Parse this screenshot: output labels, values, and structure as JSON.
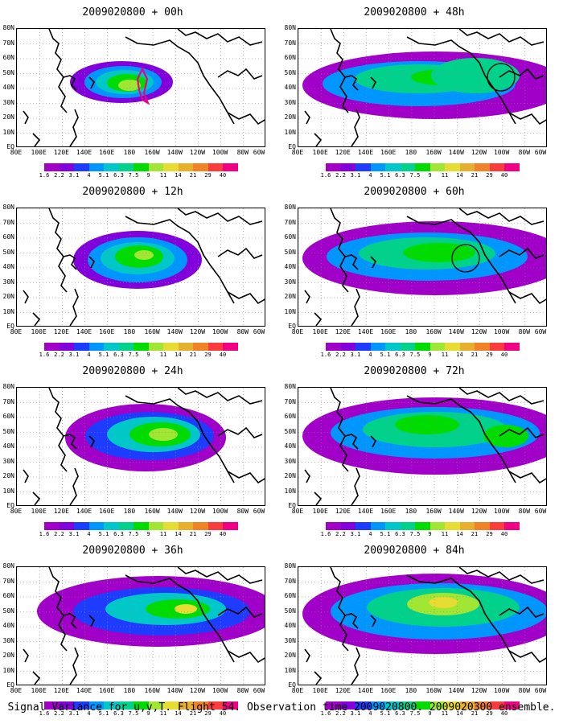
{
  "panels": [
    {
      "title": "2009020800 + 00h",
      "blobs": [
        {
          "cx": 130,
          "cy": 66,
          "rx": 64,
          "ry": 26,
          "l": 1
        },
        {
          "cx": 132,
          "cy": 66,
          "rx": 48,
          "ry": 20,
          "l": 3
        },
        {
          "cx": 134,
          "cy": 66,
          "rx": 36,
          "ry": 15,
          "l": 4
        },
        {
          "cx": 137,
          "cy": 67,
          "rx": 25,
          "ry": 11,
          "l": 6
        },
        {
          "cx": 140,
          "cy": 70,
          "rx": 14,
          "ry": 7,
          "l": 7
        }
      ],
      "highlight": "xstar",
      "circle": null
    },
    {
      "title": "2009020800 + 48h",
      "blobs": [
        {
          "cx": 170,
          "cy": 70,
          "rx": 165,
          "ry": 42,
          "l": 0
        },
        {
          "cx": 150,
          "cy": 68,
          "rx": 120,
          "ry": 28,
          "l": 3
        },
        {
          "cx": 150,
          "cy": 62,
          "rx": 80,
          "ry": 18,
          "l": 5
        },
        {
          "cx": 180,
          "cy": 60,
          "rx": 40,
          "ry": 10,
          "l": 6
        },
        {
          "cx": 220,
          "cy": 58,
          "rx": 55,
          "ry": 22,
          "l": 5
        }
      ],
      "highlight": null,
      "circle": {
        "cx": 252,
        "cy": 60,
        "r": 17
      }
    },
    {
      "title": "2009020800 + 12h",
      "blobs": [
        {
          "cx": 150,
          "cy": 64,
          "rx": 80,
          "ry": 36,
          "l": 1
        },
        {
          "cx": 150,
          "cy": 64,
          "rx": 62,
          "ry": 28,
          "l": 3
        },
        {
          "cx": 150,
          "cy": 62,
          "rx": 46,
          "ry": 20,
          "l": 4
        },
        {
          "cx": 152,
          "cy": 60,
          "rx": 30,
          "ry": 14,
          "l": 6
        },
        {
          "cx": 158,
          "cy": 58,
          "rx": 12,
          "ry": 6,
          "l": 7
        }
      ],
      "highlight": null,
      "circle": null
    },
    {
      "title": "2009020800 + 60h",
      "blobs": [
        {
          "cx": 170,
          "cy": 62,
          "rx": 165,
          "ry": 46,
          "l": 0
        },
        {
          "cx": 160,
          "cy": 60,
          "rx": 125,
          "ry": 30,
          "l": 3
        },
        {
          "cx": 160,
          "cy": 56,
          "rx": 85,
          "ry": 20,
          "l": 5
        },
        {
          "cx": 175,
          "cy": 55,
          "rx": 45,
          "ry": 12,
          "l": 6
        }
      ],
      "highlight": null,
      "circle": {
        "cx": 208,
        "cy": 62,
        "r": 17
      }
    },
    {
      "title": "2009020800 + 24h",
      "blobs": [
        {
          "cx": 160,
          "cy": 62,
          "rx": 100,
          "ry": 42,
          "l": 0
        },
        {
          "cx": 165,
          "cy": 60,
          "rx": 80,
          "ry": 30,
          "l": 2
        },
        {
          "cx": 170,
          "cy": 58,
          "rx": 58,
          "ry": 22,
          "l": 4
        },
        {
          "cx": 178,
          "cy": 58,
          "rx": 38,
          "ry": 15,
          "l": 6
        },
        {
          "cx": 182,
          "cy": 58,
          "rx": 18,
          "ry": 8,
          "l": 7
        }
      ],
      "highlight": null,
      "circle": null
    },
    {
      "title": "2009020800 + 72h",
      "blobs": [
        {
          "cx": 170,
          "cy": 60,
          "rx": 165,
          "ry": 48,
          "l": 0
        },
        {
          "cx": 170,
          "cy": 56,
          "rx": 130,
          "ry": 32,
          "l": 3
        },
        {
          "cx": 170,
          "cy": 52,
          "rx": 90,
          "ry": 22,
          "l": 5
        },
        {
          "cx": 160,
          "cy": 46,
          "rx": 40,
          "ry": 12,
          "l": 6
        },
        {
          "cx": 258,
          "cy": 60,
          "rx": 28,
          "ry": 14,
          "l": 6
        }
      ],
      "highlight": null,
      "circle": null
    },
    {
      "title": "2009020800 + 36h",
      "blobs": [
        {
          "cx": 175,
          "cy": 55,
          "rx": 150,
          "ry": 44,
          "l": 0
        },
        {
          "cx": 180,
          "cy": 55,
          "rx": 110,
          "ry": 30,
          "l": 2
        },
        {
          "cx": 185,
          "cy": 52,
          "rx": 75,
          "ry": 20,
          "l": 4
        },
        {
          "cx": 200,
          "cy": 52,
          "rx": 40,
          "ry": 12,
          "l": 6
        },
        {
          "cx": 210,
          "cy": 52,
          "rx": 14,
          "ry": 6,
          "l": 8
        }
      ],
      "highlight": null,
      "circle": null
    },
    {
      "title": "2009020800 + 84h",
      "blobs": [
        {
          "cx": 170,
          "cy": 58,
          "rx": 165,
          "ry": 50,
          "l": 0
        },
        {
          "cx": 175,
          "cy": 55,
          "rx": 135,
          "ry": 35,
          "l": 3
        },
        {
          "cx": 180,
          "cy": 50,
          "rx": 95,
          "ry": 24,
          "l": 5
        },
        {
          "cx": 180,
          "cy": 46,
          "rx": 45,
          "ry": 14,
          "l": 7
        },
        {
          "cx": 180,
          "cy": 44,
          "rx": 18,
          "ry": 7,
          "l": 8
        }
      ],
      "highlight": null,
      "circle": null
    }
  ],
  "lat_labels": [
    "80N",
    "70N",
    "60N",
    "50N",
    "40N",
    "30N",
    "20N",
    "10N",
    "EQ"
  ],
  "lon_labels": [
    "80E",
    "100E",
    "120E",
    "140E",
    "160E",
    "180",
    "160W",
    "140W",
    "120W",
    "100W",
    "80W",
    "60W"
  ],
  "colorbar": {
    "colors": [
      "#a000c8",
      "#8200dc",
      "#1e3cff",
      "#0096ff",
      "#00c8c8",
      "#00d28c",
      "#00dc00",
      "#a0e632",
      "#e6dc32",
      "#e6af2d",
      "#f08228",
      "#fa3c3c",
      "#f00082"
    ],
    "labels": [
      "1.6",
      "2.2",
      "3.1",
      "4",
      "5.1",
      "6.3",
      "7.5",
      "9",
      "11",
      "14",
      "21",
      "29",
      "40"
    ]
  },
  "caption": "Signal Variance for u,v,T. Flight 54. Observation time 2009020800. 2009020300 ensemble."
}
